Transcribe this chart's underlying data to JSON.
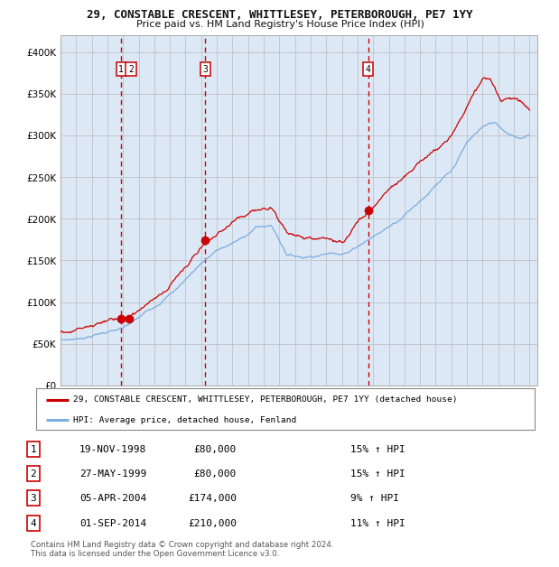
{
  "title": "29, CONSTABLE CRESCENT, WHITTLESEY, PETERBOROUGH, PE7 1YY",
  "subtitle": "Price paid vs. HM Land Registry's House Price Index (HPI)",
  "ylim": [
    0,
    420000
  ],
  "yticks": [
    0,
    50000,
    100000,
    150000,
    200000,
    250000,
    300000,
    350000,
    400000
  ],
  "ytick_labels": [
    "£0",
    "£50K",
    "£100K",
    "£150K",
    "£200K",
    "£250K",
    "£300K",
    "£350K",
    "£400K"
  ],
  "xlim_start": 1995.0,
  "xlim_end": 2025.5,
  "background_color": "#ffffff",
  "plot_bg_color": "#dce8f5",
  "grid_color": "#bbbbbb",
  "line_color_red": "#cc0000",
  "line_color_blue": "#7aade0",
  "sale_dates": [
    1998.88,
    1999.4,
    2004.26,
    2014.67
  ],
  "sale_prices": [
    80000,
    80000,
    174000,
    210000
  ],
  "vline_dates": [
    1998.88,
    2004.26,
    2014.67
  ],
  "sale_labels": [
    "1",
    "2",
    "3",
    "4"
  ],
  "legend_entries": [
    "29, CONSTABLE CRESCENT, WHITTLESEY, PETERBOROUGH, PE7 1YY (detached house)",
    "HPI: Average price, detached house, Fenland"
  ],
  "table_rows": [
    [
      "1",
      "19-NOV-1998",
      "£80,000",
      "15% ↑ HPI"
    ],
    [
      "2",
      "27-MAY-1999",
      "£80,000",
      "15% ↑ HPI"
    ],
    [
      "3",
      "05-APR-2004",
      "£174,000",
      "9% ↑ HPI"
    ],
    [
      "4",
      "01-SEP-2014",
      "£210,000",
      "11% ↑ HPI"
    ]
  ],
  "footer": "Contains HM Land Registry data © Crown copyright and database right 2024.\nThis data is licensed under the Open Government Licence v3.0.",
  "red_anchors_y": [
    1995.0,
    1996.0,
    1997.0,
    1998.0,
    1998.88,
    1999.4,
    2000.5,
    2002.0,
    2004.0,
    2004.26,
    2005.5,
    2007.5,
    2008.5,
    2009.5,
    2010.5,
    2012.0,
    2013.0,
    2014.0,
    2014.67,
    2016.0,
    2017.5,
    2019.0,
    2020.0,
    2021.0,
    2022.0,
    2022.5,
    2023.2,
    2024.0,
    2024.5,
    2025.0
  ],
  "red_anchors_p": [
    64000,
    67000,
    72000,
    77000,
    80000,
    80000,
    95000,
    118000,
    168000,
    174000,
    190000,
    210000,
    215000,
    185000,
    178000,
    175000,
    175000,
    200000,
    210000,
    235000,
    260000,
    280000,
    295000,
    330000,
    365000,
    368000,
    340000,
    345000,
    338000,
    330000
  ],
  "blue_anchors_y": [
    1995.0,
    1996.0,
    1997.0,
    1998.0,
    1999.0,
    2000.0,
    2001.0,
    2002.5,
    2004.0,
    2005.0,
    2006.5,
    2007.5,
    2008.5,
    2009.5,
    2010.5,
    2011.5,
    2012.5,
    2013.5,
    2014.5,
    2015.5,
    2016.5,
    2017.5,
    2018.5,
    2019.5,
    2020.0,
    2021.0,
    2022.0,
    2022.8,
    2023.5,
    2024.5,
    2025.0
  ],
  "blue_anchors_p": [
    54000,
    56000,
    60000,
    65000,
    68000,
    80000,
    95000,
    118000,
    148000,
    162000,
    175000,
    190000,
    192000,
    158000,
    155000,
    158000,
    160000,
    162000,
    175000,
    185000,
    198000,
    215000,
    232000,
    248000,
    255000,
    290000,
    310000,
    315000,
    305000,
    298000,
    300000
  ]
}
